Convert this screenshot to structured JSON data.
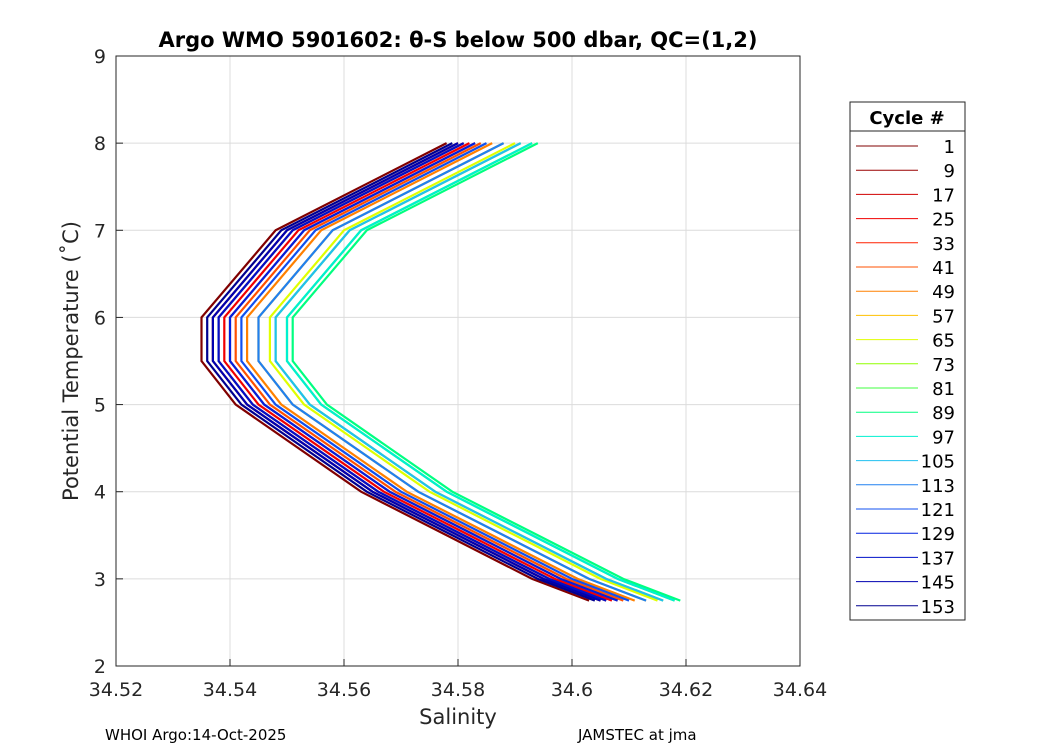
{
  "chart_data": {
    "type": "line",
    "title": "Argo WMO 5901602: θ-S below 500 dbar,  QC=(1,2)",
    "xlabel": "Salinity",
    "ylabel": "Potential Temperature (˚C)",
    "xlim": [
      34.52,
      34.64
    ],
    "ylim": [
      2,
      9
    ],
    "xticks": [
      "34.52",
      "34.54",
      "34.56",
      "34.58",
      "34.6",
      "34.62",
      "34.64"
    ],
    "yticks": [
      "2",
      "3",
      "4",
      "5",
      "6",
      "7",
      "8",
      "9"
    ],
    "grid": true,
    "legend_title": "Cycle #",
    "legend_placement": "right-outside",
    "theta": [
      2.75,
      3,
      3.5,
      4,
      5,
      5.5,
      6,
      7,
      8
    ],
    "series": [
      {
        "name": "1",
        "color": "#800000",
        "salinity": [
          34.603,
          34.593,
          34.578,
          34.563,
          34.541,
          34.535,
          34.535,
          34.548,
          34.578
        ]
      },
      {
        "name": "9",
        "color": "#9a0000",
        "salinity": [
          34.605,
          34.595,
          34.58,
          34.565,
          34.543,
          34.537,
          34.537,
          34.55,
          34.58
        ]
      },
      {
        "name": "17",
        "color": "#d00000",
        "salinity": [
          34.606,
          34.596,
          34.581,
          34.566,
          34.544,
          34.538,
          34.538,
          34.551,
          34.581
        ]
      },
      {
        "name": "25",
        "color": "#f00000",
        "salinity": [
          34.607,
          34.597,
          34.582,
          34.567,
          34.545,
          34.539,
          34.539,
          34.552,
          34.582
        ]
      },
      {
        "name": "33",
        "color": "#ff2000",
        "salinity": [
          34.608,
          34.598,
          34.583,
          34.568,
          34.546,
          34.54,
          34.54,
          34.553,
          34.583
        ]
      },
      {
        "name": "41",
        "color": "#ff5000",
        "salinity": [
          34.609,
          34.599,
          34.584,
          34.569,
          34.547,
          34.541,
          34.541,
          34.554,
          34.584
        ]
      },
      {
        "name": "49",
        "color": "#ff8000",
        "salinity": [
          34.611,
          34.601,
          34.586,
          34.571,
          34.549,
          34.543,
          34.543,
          34.556,
          34.586
        ]
      },
      {
        "name": "57",
        "color": "#ffc000",
        "salinity": [
          34.613,
          34.603,
          34.588,
          34.573,
          34.551,
          34.545,
          34.545,
          34.558,
          34.588
        ]
      },
      {
        "name": "65",
        "color": "#e0ff00",
        "salinity": [
          34.615,
          34.605,
          34.59,
          34.575,
          34.553,
          34.547,
          34.547,
          34.56,
          34.59
        ]
      },
      {
        "name": "73",
        "color": "#90ff00",
        "salinity": [
          34.616,
          34.606,
          34.591,
          34.576,
          34.554,
          34.548,
          34.548,
          34.561,
          34.591
        ]
      },
      {
        "name": "81",
        "color": "#40ff40",
        "salinity": [
          34.618,
          34.608,
          34.593,
          34.578,
          34.556,
          34.55,
          34.55,
          34.563,
          34.593
        ]
      },
      {
        "name": "89",
        "color": "#00ff80",
        "salinity": [
          34.619,
          34.609,
          34.594,
          34.579,
          34.557,
          34.551,
          34.551,
          34.564,
          34.594
        ]
      },
      {
        "name": "97",
        "color": "#00f0d0",
        "salinity": [
          34.618,
          34.608,
          34.593,
          34.578,
          34.556,
          34.55,
          34.55,
          34.563,
          34.593
        ]
      },
      {
        "name": "105",
        "color": "#20c0f0",
        "salinity": [
          34.616,
          34.606,
          34.591,
          34.576,
          34.554,
          34.548,
          34.548,
          34.561,
          34.591
        ]
      },
      {
        "name": "113",
        "color": "#2080f0",
        "salinity": [
          34.613,
          34.603,
          34.588,
          34.573,
          34.551,
          34.545,
          34.545,
          34.558,
          34.588
        ]
      },
      {
        "name": "121",
        "color": "#1050f0",
        "salinity": [
          34.61,
          34.6,
          34.585,
          34.57,
          34.548,
          34.542,
          34.542,
          34.555,
          34.585
        ]
      },
      {
        "name": "129",
        "color": "#0020e0",
        "salinity": [
          34.608,
          34.598,
          34.583,
          34.568,
          34.546,
          34.54,
          34.54,
          34.553,
          34.583
        ]
      },
      {
        "name": "137",
        "color": "#0010c8",
        "salinity": [
          34.606,
          34.596,
          34.581,
          34.566,
          34.544,
          34.538,
          34.538,
          34.551,
          34.581
        ]
      },
      {
        "name": "145",
        "color": "#0000b0",
        "salinity": [
          34.605,
          34.595,
          34.58,
          34.565,
          34.543,
          34.537,
          34.537,
          34.55,
          34.58
        ]
      },
      {
        "name": "153",
        "color": "#000090",
        "salinity": [
          34.604,
          34.594,
          34.579,
          34.564,
          34.542,
          34.536,
          34.536,
          34.549,
          34.579
        ]
      }
    ]
  },
  "footer": {
    "left": "WHOI Argo:14-Oct-2025",
    "right": "JAMSTEC at jma"
  }
}
